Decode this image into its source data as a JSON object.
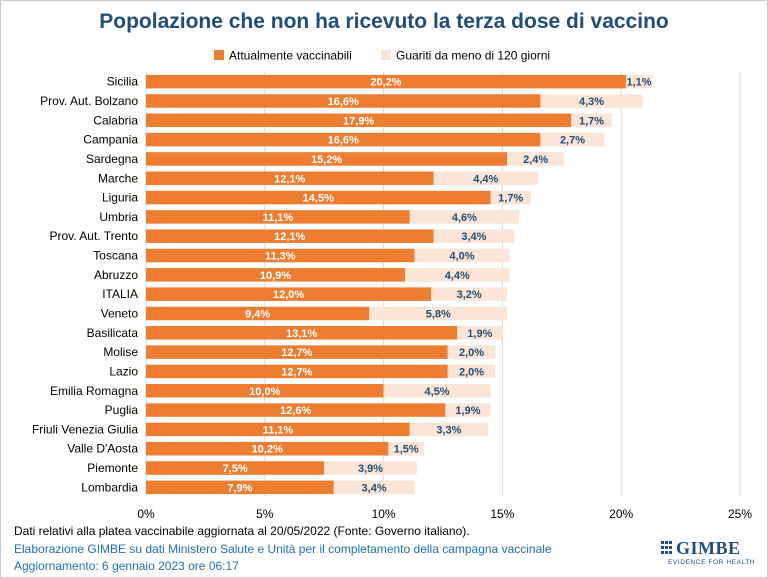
{
  "chart_data": {
    "type": "bar",
    "orientation": "horizontal",
    "stacked": true,
    "title": "Popolazione che non ha ricevuto la terza dose di vaccino",
    "categories": [
      "Sicilia",
      "Prov. Aut. Bolzano",
      "Calabria",
      "Campania",
      "Sardegna",
      "Marche",
      "Liguria",
      "Umbria",
      "Prov. Aut. Trento",
      "Toscana",
      "Abruzzo",
      "ITALIA",
      "Veneto",
      "Basilicata",
      "Molise",
      "Lazio",
      "Emilia Romagna",
      "Puglia",
      "Friuli Venezia Giulia",
      "Valle D'Aosta",
      "Piemonte",
      "Lombardia"
    ],
    "series": [
      {
        "name": "Attualmente vaccinabili",
        "color": "#ed7d31",
        "values": [
          20.2,
          16.6,
          17.9,
          16.6,
          15.2,
          12.1,
          14.5,
          11.1,
          12.1,
          11.3,
          10.9,
          12.0,
          9.4,
          13.1,
          12.7,
          12.7,
          10.0,
          12.6,
          11.1,
          10.2,
          7.5,
          7.9
        ],
        "labels": [
          "20,2%",
          "16,6%",
          "17,9%",
          "16,6%",
          "15,2%",
          "12,1%",
          "14,5%",
          "11,1%",
          "12,1%",
          "11,3%",
          "10,9%",
          "12,0%",
          "9,4%",
          "13,1%",
          "12,7%",
          "12,7%",
          "10,0%",
          "12,6%",
          "11,1%",
          "10,2%",
          "7,5%",
          "7,9%"
        ]
      },
      {
        "name": "Guariti da meno di 120 giorni",
        "color": "#fbe5d6",
        "values": [
          1.1,
          4.3,
          1.7,
          2.7,
          2.4,
          4.4,
          1.7,
          4.6,
          3.4,
          4.0,
          4.4,
          3.2,
          5.8,
          1.9,
          2.0,
          2.0,
          4.5,
          1.9,
          3.3,
          1.5,
          3.9,
          3.4
        ],
        "labels": [
          "1,1%",
          "4,3%",
          "1,7%",
          "2,7%",
          "2,4%",
          "4,4%",
          "1,7%",
          "4,6%",
          "3,4%",
          "4,0%",
          "4,4%",
          "3,2%",
          "5,8%",
          "1,9%",
          "2,0%",
          "2,0%",
          "4,5%",
          "1,9%",
          "3,3%",
          "1,5%",
          "3,9%",
          "3,4%"
        ]
      }
    ],
    "xlim": [
      0,
      25
    ],
    "xticks": [
      0,
      5,
      10,
      15,
      20,
      25
    ],
    "xtick_labels": [
      "0%",
      "5%",
      "10%",
      "15%",
      "20%",
      "25%"
    ],
    "grid": true,
    "legend_position": "top"
  },
  "source_note": "Dati relativi alla platea vaccinabile aggiornata al 20/05/2022 (Fonte: Governo italiano).",
  "footer": {
    "credit": "Elaborazione GIMBE su dati Ministero Salute e Unità per il completamento della campagna vaccinale",
    "updated": "Aggiornamento: 6 gennaio 2023 ore 06:17"
  },
  "logo": {
    "name": "GIMBE",
    "tagline": "EVIDENCE FOR HEALTH",
    "color": "#1f4e79"
  }
}
